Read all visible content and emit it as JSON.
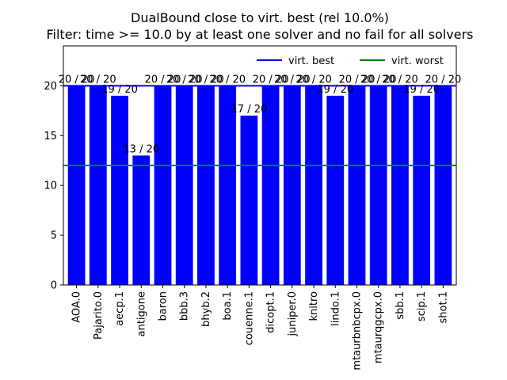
{
  "chart_data": {
    "type": "bar",
    "title": "DualBound close to virt. best (rel 10.0%)",
    "subtitle": "Filter: time >= 10.0 by at least one solver and no fail for all solvers",
    "xlabel": "",
    "ylabel": "",
    "ylim": [
      0,
      24
    ],
    "yticks": [
      0,
      5,
      10,
      15,
      20
    ],
    "categories": [
      "AOA.0",
      "Pajarito.0",
      "aecp.1",
      "antigone",
      "baron",
      "bbb.3",
      "bhyb.2",
      "boa.1",
      "couenne.1",
      "dicopt.1",
      "juniper.0",
      "knitro",
      "lindo.1",
      "mtaurbnbcpx.0",
      "mtaurqgcpx.0",
      "sbb.1",
      "scip.1",
      "shot.1"
    ],
    "values": [
      20,
      20,
      19,
      13,
      20,
      20,
      20,
      20,
      17,
      20,
      20,
      20,
      19,
      20,
      20,
      20,
      19,
      20
    ],
    "data_labels": [
      "20 / 20",
      "20 / 20",
      "19 / 20",
      "13 / 20",
      "20 / 20",
      "20 / 20",
      "20 / 20",
      "20 / 20",
      "17 / 20",
      "20 / 20",
      "20 / 20",
      "20 / 20",
      "19 / 20",
      "20 / 20",
      "20 / 20",
      "20 / 20",
      "19 / 20",
      "20 / 20"
    ],
    "bar_color": "#0000ff",
    "lines": [
      {
        "name": "virt. best",
        "value": 20,
        "color": "#0000ff"
      },
      {
        "name": "virt. worst",
        "value": 12,
        "color": "#008000"
      }
    ],
    "legend_placement": "top-right",
    "grid": false
  }
}
